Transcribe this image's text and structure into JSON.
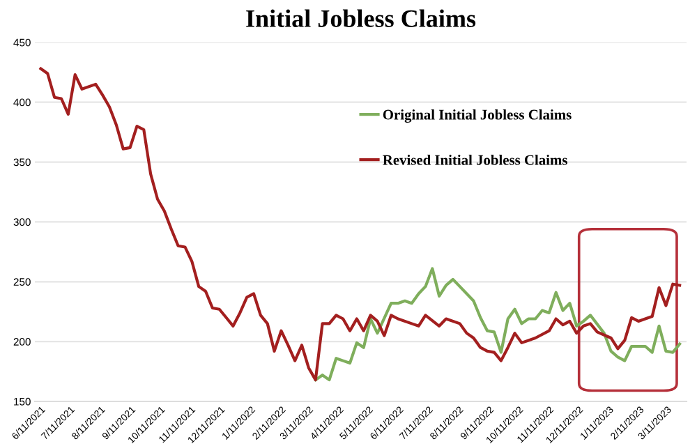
{
  "chart_data": {
    "type": "line",
    "title": "Initial Jobless Claims",
    "series": [
      {
        "name": "Original Initial Jobless Claims",
        "color": "#7fae5c",
        "x": [
          "2022-03-18",
          "2022-03-25",
          "2022-04-01",
          "2022-04-08",
          "2022-04-15",
          "2022-04-22",
          "2022-04-29",
          "2022-05-06",
          "2022-05-13",
          "2022-05-20",
          "2022-06-03",
          "2022-06-10",
          "2022-06-17",
          "2022-06-24",
          "2022-07-01",
          "2022-07-08",
          "2022-07-15",
          "2022-07-22",
          "2022-07-29",
          "2022-08-05",
          "2022-08-12",
          "2022-08-26",
          "2022-09-02",
          "2022-09-09",
          "2022-09-16",
          "2022-09-23",
          "2022-09-30",
          "2022-10-07",
          "2022-10-14",
          "2022-10-21",
          "2022-10-28",
          "2022-11-04",
          "2022-11-11",
          "2022-11-18",
          "2022-11-25",
          "2022-12-02",
          "2022-12-09",
          "2022-12-16",
          "2022-12-23",
          "2023-01-06",
          "2023-01-13",
          "2023-01-20",
          "2023-01-27",
          "2023-02-03",
          "2023-02-17",
          "2023-02-24",
          "2023-03-03",
          "2023-03-10",
          "2023-03-17",
          "2023-03-24"
        ],
        "values": [
          168,
          172,
          168,
          186,
          184,
          182,
          199,
          195,
          219,
          207,
          232,
          232,
          234,
          232,
          240,
          246,
          261,
          238,
          247,
          252,
          246,
          234,
          220,
          209,
          208,
          191,
          219,
          227,
          215,
          219,
          219,
          226,
          224,
          241,
          226,
          232,
          213,
          217,
          222,
          207,
          192,
          187,
          184,
          196,
          196,
          191,
          213,
          192,
          191,
          198
        ]
      },
      {
        "name": "Revised Initial Jobless Claims",
        "color": "#a31f1f",
        "x": [
          "2021-06-11",
          "2021-06-18",
          "2021-06-25",
          "2021-07-02",
          "2021-07-09",
          "2021-07-16",
          "2021-07-23",
          "2021-08-06",
          "2021-08-13",
          "2021-08-20",
          "2021-08-27",
          "2021-09-03",
          "2021-09-10",
          "2021-09-17",
          "2021-09-24",
          "2021-10-01",
          "2021-10-08",
          "2021-10-15",
          "2021-10-22",
          "2021-10-29",
          "2021-11-05",
          "2021-11-12",
          "2021-11-19",
          "2021-11-26",
          "2021-12-03",
          "2021-12-10",
          "2021-12-17",
          "2021-12-24",
          "2021-12-31",
          "2022-01-07",
          "2022-01-14",
          "2022-01-21",
          "2022-01-28",
          "2022-02-04",
          "2022-02-11",
          "2022-02-18",
          "2022-02-25",
          "2022-03-04",
          "2022-03-11",
          "2022-03-18",
          "2022-03-25",
          "2022-04-01",
          "2022-04-08",
          "2022-04-15",
          "2022-04-22",
          "2022-04-29",
          "2022-05-06",
          "2022-05-13",
          "2022-05-20",
          "2022-05-27",
          "2022-06-03",
          "2022-06-10",
          "2022-06-24",
          "2022-07-01",
          "2022-07-08",
          "2022-07-22",
          "2022-07-29",
          "2022-08-12",
          "2022-08-19",
          "2022-08-26",
          "2022-09-02",
          "2022-09-09",
          "2022-09-16",
          "2022-09-23",
          "2022-09-30",
          "2022-10-07",
          "2022-10-14",
          "2022-10-28",
          "2022-11-11",
          "2022-11-18",
          "2022-11-25",
          "2022-12-02",
          "2022-12-09",
          "2022-12-16",
          "2022-12-23",
          "2022-12-30",
          "2023-01-13",
          "2023-01-20",
          "2023-01-27",
          "2023-02-03",
          "2023-02-10",
          "2023-02-24",
          "2023-03-03",
          "2023-03-10",
          "2023-03-17",
          "2023-03-24"
        ],
        "values": [
          428,
          424,
          404,
          403,
          390,
          423,
          411,
          415,
          406,
          396,
          381,
          361,
          362,
          380,
          377,
          340,
          319,
          309,
          294,
          280,
          279,
          267,
          246,
          242,
          228,
          227,
          220,
          213,
          224,
          237,
          240,
          222,
          215,
          192,
          209,
          197,
          184,
          197,
          178,
          168,
          215,
          215,
          222,
          219,
          209,
          219,
          209,
          222,
          217,
          205,
          222,
          219,
          215,
          213,
          222,
          213,
          219,
          215,
          207,
          203,
          195,
          192,
          191,
          184,
          195,
          207,
          199,
          203,
          209,
          219,
          214,
          217,
          207,
          213,
          215,
          208,
          203,
          194,
          201,
          220,
          217,
          221,
          245,
          230,
          248,
          247
        ]
      }
    ],
    "ylim": [
      150,
      450
    ],
    "yticks": [
      150,
      200,
      250,
      300,
      350,
      400,
      450
    ],
    "xlim": [
      "2021-06-05",
      "2023-03-31"
    ],
    "xticks": [
      {
        "value": "2021-06-11",
        "label": "6/11/2021"
      },
      {
        "value": "2021-07-11",
        "label": "7/11/2021"
      },
      {
        "value": "2021-08-11",
        "label": "8/11/2021"
      },
      {
        "value": "2021-09-11",
        "label": "9/11/2021"
      },
      {
        "value": "2021-10-11",
        "label": "10/11/2021"
      },
      {
        "value": "2021-11-11",
        "label": "11/11/2021"
      },
      {
        "value": "2021-12-11",
        "label": "12/11/2021"
      },
      {
        "value": "2022-01-11",
        "label": "1/11/2022"
      },
      {
        "value": "2022-02-11",
        "label": "2/11/2022"
      },
      {
        "value": "2022-03-11",
        "label": "3/11/2022"
      },
      {
        "value": "2022-04-11",
        "label": "4/11/2022"
      },
      {
        "value": "2022-05-11",
        "label": "5/11/2022"
      },
      {
        "value": "2022-06-11",
        "label": "6/11/2022"
      },
      {
        "value": "2022-07-11",
        "label": "7/11/2022"
      },
      {
        "value": "2022-08-11",
        "label": "8/11/2022"
      },
      {
        "value": "2022-09-11",
        "label": "9/11/2022"
      },
      {
        "value": "2022-10-11",
        "label": "10/11/2022"
      },
      {
        "value": "2022-11-11",
        "label": "11/11/2022"
      },
      {
        "value": "2022-12-11",
        "label": "12/11/2022"
      },
      {
        "value": "2023-01-11",
        "label": "1/11/2023"
      },
      {
        "value": "2023-02-11",
        "label": "2/11/2023"
      },
      {
        "value": "2023-03-11",
        "label": "3/11/2023"
      }
    ],
    "grid": "y",
    "legend": "top right",
    "line_style": "solid"
  }
}
